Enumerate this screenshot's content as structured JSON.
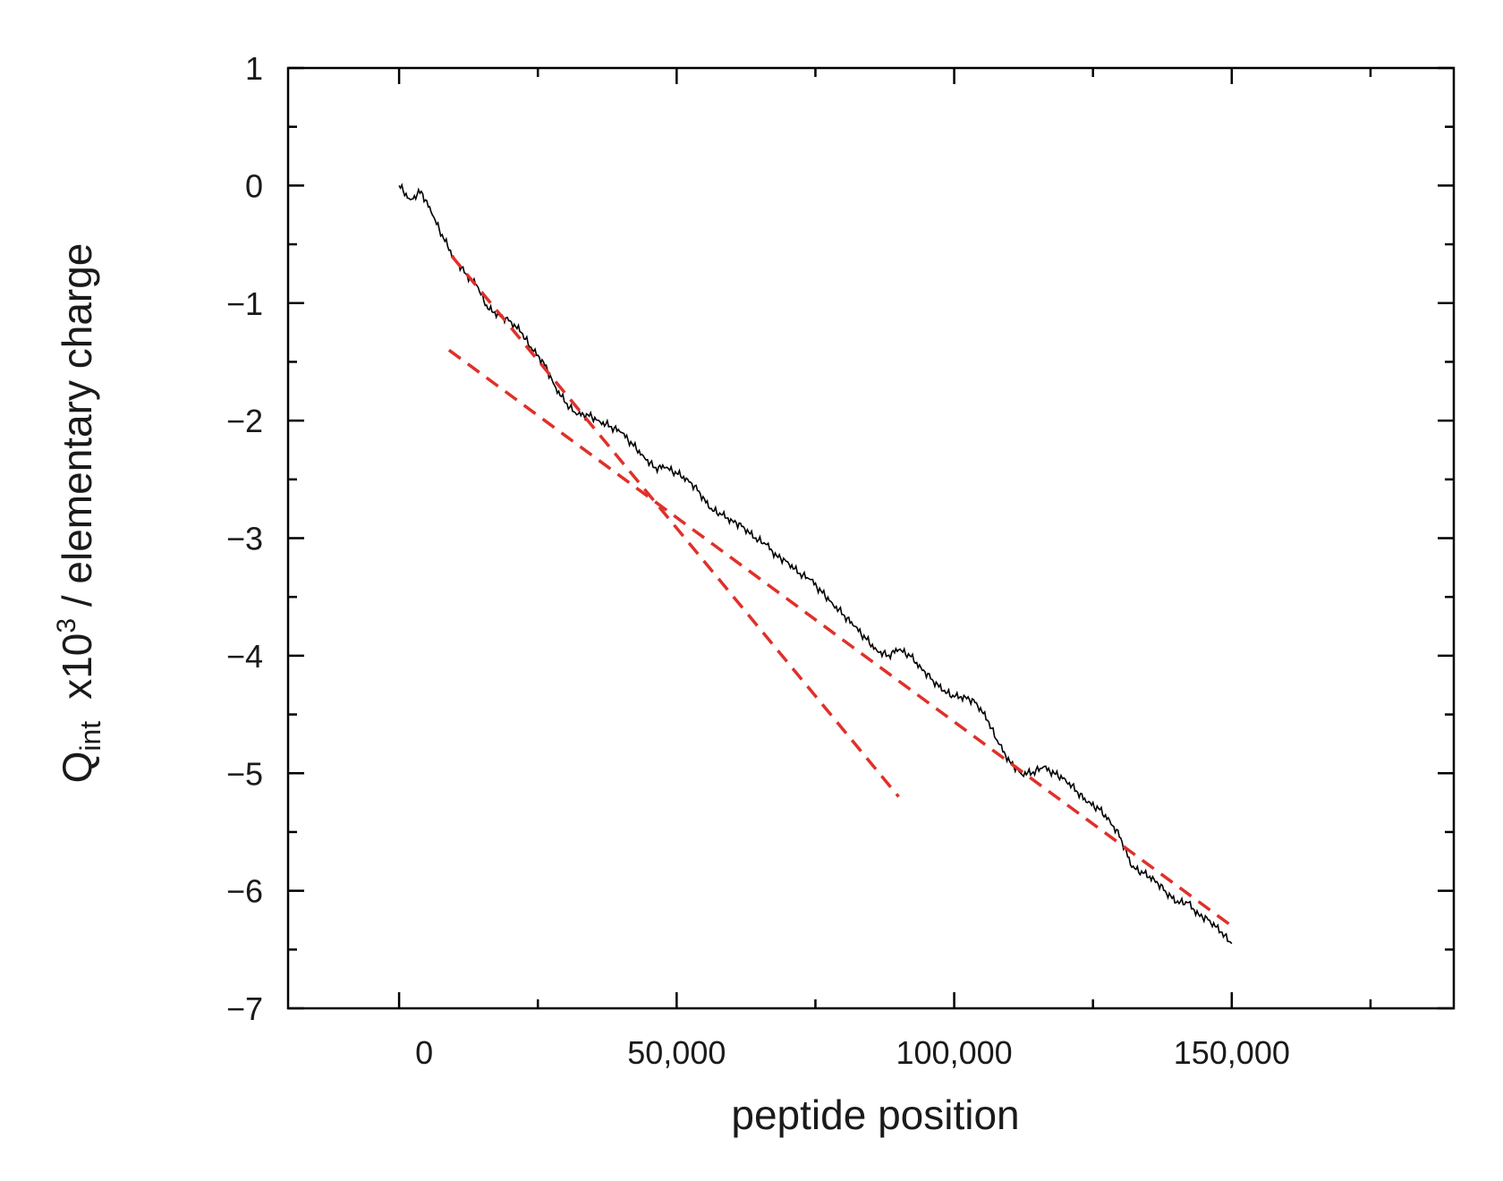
{
  "chart_data": {
    "type": "line",
    "title": "",
    "xlabel": "peptide position",
    "ylabel": {
      "main": "Q",
      "subscript": "int",
      "prefix": "x10",
      "superscript": "3",
      "rest": " / elementary charge"
    },
    "xlim": [
      -20000,
      190000
    ],
    "ylim": [
      -7,
      1
    ],
    "x_ticks": [
      0,
      50000,
      100000,
      150000
    ],
    "x_tick_labels": [
      "0",
      "50,000",
      "100,000",
      "150,000"
    ],
    "y_ticks": [
      1,
      0,
      -1,
      -2,
      -3,
      -4,
      -5,
      -6,
      -7
    ],
    "y_tick_labels": [
      "1",
      "0",
      "−1",
      "−2",
      "−3",
      "−4",
      "−5",
      "−6",
      "−7"
    ],
    "grid": false,
    "legend": "none",
    "colors": {
      "series": "#000000",
      "fit_lines": "#e0302a",
      "axes": "#000000"
    },
    "series": [
      {
        "style": "solid",
        "points": [
          [
            0,
            0.0
          ],
          [
            2000,
            -0.12
          ],
          [
            4000,
            -0.05
          ],
          [
            6000,
            -0.25
          ],
          [
            8000,
            -0.45
          ],
          [
            10000,
            -0.62
          ],
          [
            12000,
            -0.75
          ],
          [
            14000,
            -0.85
          ],
          [
            16000,
            -1.05
          ],
          [
            18000,
            -1.1
          ],
          [
            20000,
            -1.15
          ],
          [
            22000,
            -1.25
          ],
          [
            24000,
            -1.4
          ],
          [
            26000,
            -1.5
          ],
          [
            28000,
            -1.7
          ],
          [
            30000,
            -1.85
          ],
          [
            32000,
            -1.95
          ],
          [
            34000,
            -1.95
          ],
          [
            36000,
            -2.0
          ],
          [
            38000,
            -2.05
          ],
          [
            40000,
            -2.1
          ],
          [
            42000,
            -2.2
          ],
          [
            44000,
            -2.3
          ],
          [
            46000,
            -2.4
          ],
          [
            48000,
            -2.4
          ],
          [
            50000,
            -2.45
          ],
          [
            52000,
            -2.5
          ],
          [
            54000,
            -2.6
          ],
          [
            56000,
            -2.75
          ],
          [
            58000,
            -2.8
          ],
          [
            60000,
            -2.85
          ],
          [
            62000,
            -2.9
          ],
          [
            64000,
            -3.0
          ],
          [
            66000,
            -3.05
          ],
          [
            68000,
            -3.15
          ],
          [
            70000,
            -3.2
          ],
          [
            72000,
            -3.3
          ],
          [
            74000,
            -3.35
          ],
          [
            76000,
            -3.45
          ],
          [
            78000,
            -3.55
          ],
          [
            80000,
            -3.65
          ],
          [
            82000,
            -3.75
          ],
          [
            84000,
            -3.85
          ],
          [
            86000,
            -3.95
          ],
          [
            88000,
            -4.0
          ],
          [
            90000,
            -3.95
          ],
          [
            92000,
            -4.0
          ],
          [
            94000,
            -4.1
          ],
          [
            96000,
            -4.2
          ],
          [
            98000,
            -4.3
          ],
          [
            100000,
            -4.35
          ],
          [
            102000,
            -4.35
          ],
          [
            104000,
            -4.4
          ],
          [
            106000,
            -4.55
          ],
          [
            108000,
            -4.75
          ],
          [
            110000,
            -4.9
          ],
          [
            112000,
            -5.0
          ],
          [
            114000,
            -5.0
          ],
          [
            116000,
            -4.95
          ],
          [
            118000,
            -5.0
          ],
          [
            120000,
            -5.05
          ],
          [
            122000,
            -5.15
          ],
          [
            124000,
            -5.25
          ],
          [
            126000,
            -5.3
          ],
          [
            128000,
            -5.4
          ],
          [
            130000,
            -5.55
          ],
          [
            132000,
            -5.8
          ],
          [
            134000,
            -5.85
          ],
          [
            136000,
            -5.9
          ],
          [
            138000,
            -6.0
          ],
          [
            140000,
            -6.1
          ],
          [
            142000,
            -6.1
          ],
          [
            144000,
            -6.2
          ],
          [
            146000,
            -6.25
          ],
          [
            148000,
            -6.35
          ],
          [
            150000,
            -6.45
          ]
        ]
      },
      {
        "style": "dashed",
        "points": [
          [
            9500,
            -0.6
          ],
          [
            90000,
            -5.2
          ]
        ]
      },
      {
        "style": "dashed",
        "points": [
          [
            9000,
            -1.4
          ],
          [
            150000,
            -6.3
          ]
        ]
      }
    ]
  }
}
